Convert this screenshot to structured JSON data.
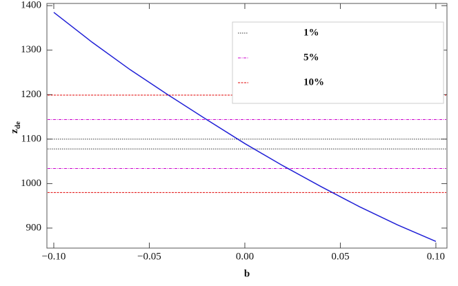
{
  "chart_data": {
    "type": "line",
    "xlabel": "b",
    "ylabel": "z",
    "ylabel_subscript": "de",
    "series": [
      {
        "color": "#1f1fd6",
        "x": [
          -0.1,
          -0.08,
          -0.06,
          -0.04,
          -0.02,
          0,
          0.02,
          0.04,
          0.06,
          0.08,
          0.1
        ],
        "values": [
          1385,
          1318,
          1256,
          1199,
          1144,
          1090,
          1040,
          993,
          948,
          907,
          870
        ]
      }
    ],
    "bands": [
      {
        "name": "1%",
        "color": "#333333",
        "values": [
          1078,
          1100
        ]
      },
      {
        "name": "5%",
        "color": "#cc00cc",
        "values": [
          1034,
          1144
        ]
      },
      {
        "name": "10%",
        "color": "#e00000",
        "values": [
          980,
          1199
        ]
      }
    ],
    "xlim": [
      -0.1036,
      0.1058
    ],
    "ylim": [
      855,
      1405
    ],
    "xticks": [
      {
        "value": -0.1,
        "label": "−0.10"
      },
      {
        "value": -0.05,
        "label": "−0.05"
      },
      {
        "value": 0,
        "label": "0.00"
      },
      {
        "value": 0.05,
        "label": "0.05"
      },
      {
        "value": 0.1,
        "label": "0.10"
      }
    ],
    "yticks": [
      900,
      1000,
      1100,
      1200,
      1300,
      1400
    ],
    "legend": "top-right"
  }
}
